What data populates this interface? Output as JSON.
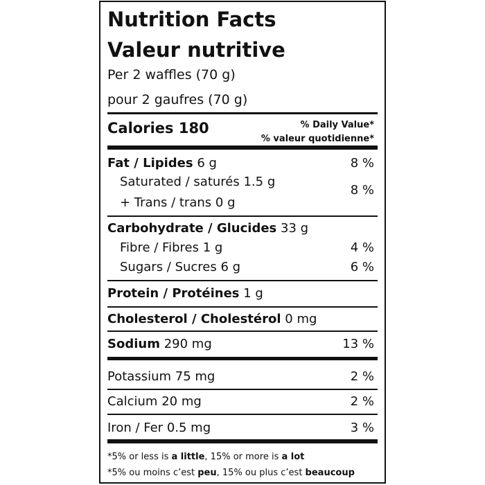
{
  "header": {
    "title": "Nutrition Facts",
    "title_fr": "Valeur nutritive",
    "serving": "Per 2 waffles (70 g)",
    "serving_fr": "pour 2 gaufres (70 g)"
  },
  "calories": {
    "label": "Calories",
    "value": "180"
  },
  "daily_value": {
    "en": "% Daily Value*",
    "fr": "% valeur quotidienne*"
  },
  "rows": [
    {
      "label": "Fat / Lipides",
      "amount": "6 g",
      "dv": "8 %"
    },
    {
      "label": "Saturated / saturés",
      "amount": "1.5 g",
      "label2": "+ Trans / trans",
      "amount2": "0 g",
      "dv": "8 %"
    },
    {
      "label": "Carbohydrate / Glucides",
      "amount": "33 g"
    },
    {
      "label": "Fibre / Fibres",
      "amount": "1 g",
      "dv": "4 %"
    },
    {
      "label": "Sugars / Sucres",
      "amount": "6 g",
      "dv": "6 %"
    },
    {
      "label": "Protein / Protéines",
      "amount": "1 g"
    },
    {
      "label": "Cholesterol / Cholestérol",
      "amount": "0 mg"
    },
    {
      "label": "Sodium",
      "amount": "290 mg",
      "dv": "13 %"
    },
    {
      "label": "Potassium",
      "amount": "75 mg",
      "dv": "2 %"
    },
    {
      "label": "Calcium",
      "amount": "20 mg",
      "dv": "2 %"
    },
    {
      "label": "Iron / Fer",
      "amount": "0.5 mg",
      "dv": "3 %"
    }
  ],
  "footnote": {
    "en": [
      "*5% or less is ",
      "a little",
      ", 15% or more is ",
      "a lot"
    ],
    "fr": [
      "*5% ou moins c’est ",
      "peu",
      ", 15% ou plus c’est ",
      "beaucoup"
    ]
  }
}
